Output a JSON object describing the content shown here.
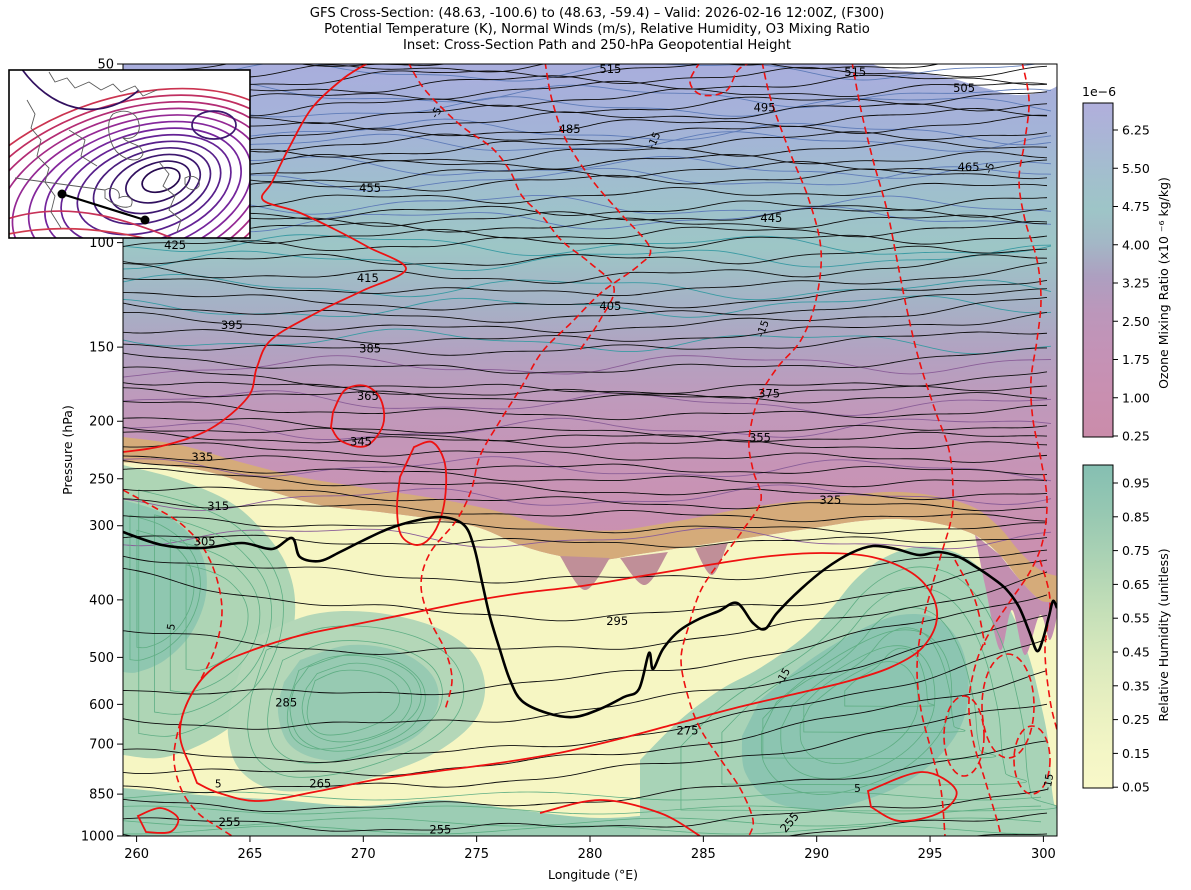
{
  "title": {
    "line1": "GFS Cross-Section: (48.63, -100.6) to (48.63, -59.4) – Valid: 2026-02-16 12:00Z, (F300)",
    "line2": "Potential Temperature (K), Normal Winds (m/s), Relative Humidity, O3 Mixing Ratio",
    "line3": "Inset: Cross-Section Path and 250-hPa Geopotential Height"
  },
  "chart_data": {
    "type": "heatmap",
    "subtype": "vertical-cross-section-with-contours",
    "x_axis": {
      "label": "Longitude (°E)",
      "ticks": [
        260,
        265,
        270,
        275,
        280,
        285,
        290,
        295,
        300
      ],
      "range": [
        259.4,
        300.6
      ]
    },
    "y_axis": {
      "label": "Pressure (hPa)",
      "scale": "log",
      "inverted": true,
      "ticks": [
        50,
        100,
        150,
        200,
        250,
        300,
        400,
        500,
        600,
        700,
        850,
        1000
      ],
      "range": [
        50,
        1000
      ]
    },
    "colorbars": [
      {
        "id": "ozone",
        "label": "Ozone Mixing Ratio (x10 ⁻⁶ kg/kg)",
        "offset_text": "1e−6",
        "ticks": [
          6.25,
          5.5,
          4.75,
          4.0,
          3.25,
          2.5,
          1.75,
          1.0,
          0.25
        ],
        "colors_top_to_bottom": [
          "#b1afdc",
          "#a2bfcd",
          "#9ec5c7",
          "#ad9fc0",
          "#bb97bb",
          "#c492b6",
          "#ca8caa"
        ]
      },
      {
        "id": "relative_humidity",
        "label": "Relative Humidity (unitless)",
        "offset_text": "",
        "ticks": [
          0.95,
          0.85,
          0.75,
          0.65,
          0.55,
          0.45,
          0.35,
          0.25,
          0.15,
          0.05
        ],
        "colors_top_to_bottom": [
          "#85bfb2",
          "#add3b4",
          "#d9e9bd",
          "#f4f6c6",
          "#f8f8c9"
        ]
      }
    ],
    "contour_sets": [
      {
        "name": "potential_temperature",
        "units": "K",
        "style": "solid black, labeled every 10 K",
        "interval_K": 5,
        "labeled_values": [
          255,
          265,
          275,
          285,
          295,
          305,
          315,
          325,
          335,
          345,
          355,
          365,
          375,
          385,
          395,
          405,
          415,
          425,
          445,
          455,
          465,
          485,
          495,
          505,
          515
        ],
        "labels": [
          {
            "v": 515,
            "lon": 280.9,
            "p": 51.0
          },
          {
            "v": 515,
            "lon": 291.7,
            "p": 51.6
          },
          {
            "v": 505,
            "lon": 296.5,
            "p": 54.9
          },
          {
            "v": 495,
            "lon": 287.7,
            "p": 59.2
          },
          {
            "v": 485,
            "lon": 279.1,
            "p": 64.3
          },
          {
            "v": 465,
            "lon": 296.7,
            "p": 74.6
          },
          {
            "v": 455,
            "lon": 270.3,
            "p": 80.9
          },
          {
            "v": 445,
            "lon": 288.0,
            "p": 90.9
          },
          {
            "v": 425,
            "lon": 261.7,
            "p": 100.9
          },
          {
            "v": 415,
            "lon": 270.2,
            "p": 114.8
          },
          {
            "v": 405,
            "lon": 280.9,
            "p": 127.8
          },
          {
            "v": 395,
            "lon": 264.2,
            "p": 137.6
          },
          {
            "v": 385,
            "lon": 270.3,
            "p": 150.7
          },
          {
            "v": 375,
            "lon": 287.9,
            "p": 179.5
          },
          {
            "v": 365,
            "lon": 270.2,
            "p": 181.5
          },
          {
            "v": 355,
            "lon": 287.5,
            "p": 212.9
          },
          {
            "v": 345,
            "lon": 269.9,
            "p": 216.2
          },
          {
            "v": 335,
            "lon": 262.9,
            "p": 229.8
          },
          {
            "v": 325,
            "lon": 290.6,
            "p": 271.7
          },
          {
            "v": 315,
            "lon": 263.6,
            "p": 278.0
          },
          {
            "v": 305,
            "lon": 263.0,
            "p": 318.7
          },
          {
            "v": 295,
            "lon": 281.2,
            "p": 434.0
          },
          {
            "v": 285,
            "lon": 266.6,
            "p": 596.0
          },
          {
            "v": 275,
            "lon": 284.3,
            "p": 663.9
          },
          {
            "v": 265,
            "lon": 268.1,
            "p": 816.0
          },
          {
            "v": 255,
            "lon": 264.1,
            "p": 948.0
          },
          {
            "v": 255,
            "lon": 273.4,
            "p": 975.0
          },
          {
            "v": 255,
            "lon": 288.8,
            "p": 948.0,
            "rot": -50
          }
        ]
      },
      {
        "name": "normal_wind",
        "units": "m/s",
        "positive_style": "solid red",
        "negative_style": "dashed red",
        "labels": [
          {
            "v": 5,
            "lon": 263.6,
            "p": 816.0
          },
          {
            "v": 5,
            "lon": 291.8,
            "p": 830.0
          },
          {
            "v": 5,
            "lon": 261.5,
            "p": 444.0,
            "rot": -80
          },
          {
            "v": -5,
            "lon": 273.2,
            "p": 60.3,
            "rot": -60
          },
          {
            "v": -5,
            "lon": 297.6,
            "p": 74.8,
            "rot": -70
          },
          {
            "v": -15,
            "lon": 282.8,
            "p": 67.2,
            "rot": -65
          },
          {
            "v": -15,
            "lon": 287.6,
            "p": 139.5,
            "rot": -70
          },
          {
            "v": -15,
            "lon": 288.5,
            "p": 537.5,
            "rot": -60
          },
          {
            "v": -15,
            "lon": 300.2,
            "p": 811.0,
            "rot": -80
          }
        ]
      },
      {
        "name": "ozone_mixing_ratio_lines",
        "style": "thin blue/teal/purple contour lines in stratosphere"
      },
      {
        "name": "relative_humidity_lines",
        "style": "thin green contour lines in troposphere"
      },
      {
        "name": "dynamic_tropopause",
        "style": "thick black line"
      }
    ],
    "inset": {
      "contour_field": "250-hPa Geopotential Height",
      "path_endpoints": [
        "48.63, -100.6",
        "48.63, -59.4"
      ],
      "endpoints_marked": true
    },
    "palette": {
      "theta_contour": "#000000",
      "wind_contour": "#ee1111",
      "tropopause": "#000000",
      "o3_fill_top": "#a9aedd",
      "o3_fill_teal": "#9dc6c6",
      "o3_fill_pink": "#cb8eac",
      "overlap_tan": "#d5ab7a",
      "rh_fill_yellow": "#f6f6c3",
      "rh_fill_green": "#aed5b5",
      "rh_fill_teal": "#8fc7b0",
      "rh_contour": "#5fae84",
      "o3_contour_blue": "#5f7cb8",
      "o3_contour_teal": "#3a9aa3",
      "o3_contour_purple": "#8a5e98",
      "inset_contours_high": "#26094f",
      "inset_contours_low": "#cb3350"
    }
  }
}
